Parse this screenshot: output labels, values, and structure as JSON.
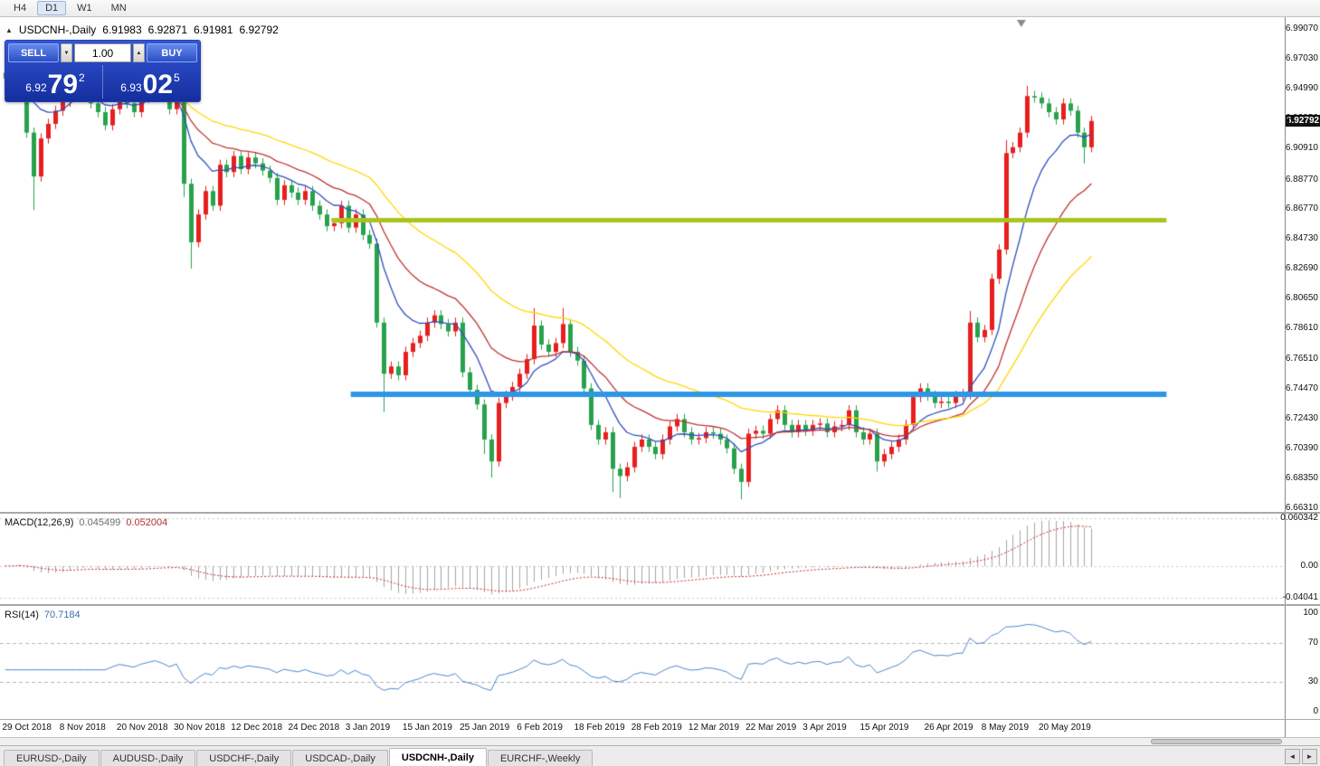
{
  "toolbar": {
    "items": [
      {
        "label": "H4"
      },
      {
        "label": "D1"
      },
      {
        "label": "W1"
      },
      {
        "label": "MN"
      }
    ],
    "active_index": 1
  },
  "chart": {
    "symbol_period": "USDCNH-,Daily",
    "open": "6.91983",
    "high": "6.92871",
    "low": "6.91981",
    "close": "6.92792"
  },
  "icons": {
    "collapse": "▲",
    "spin_down": "▼",
    "spin_up": "▲",
    "tab_left": "◄",
    "tab_right": "►"
  },
  "trade_panel": {
    "sell_label": "SELL",
    "buy_label": "BUY",
    "volume": "1.00",
    "sell_price": {
      "prefix": "6.92",
      "big": "79",
      "sup": "2"
    },
    "buy_price": {
      "prefix": "6.93",
      "big": "02",
      "sup": "5"
    },
    "panel_color": "#2245c4"
  },
  "price_axis": {
    "labels": [
      "6.99070",
      "6.97030",
      "6.94990",
      "6.92950",
      "6.90910",
      "6.88770",
      "6.86770",
      "6.84730",
      "6.82690",
      "6.80650",
      "6.78610",
      "6.76510",
      "6.74470",
      "6.72430",
      "6.70390",
      "6.68350",
      "6.66310"
    ],
    "current": "6.92792"
  },
  "macd_panel": {
    "label": "MACD(12,26,9)",
    "value1": "0.045499",
    "value2": "0.052004",
    "axis": [
      "0.060342",
      "0.00",
      "-0.04041"
    ]
  },
  "rsi_panel": {
    "label": "RSI(14)",
    "value": "70.7184",
    "axis": [
      "100",
      "70",
      "30",
      "0"
    ]
  },
  "tabbar": {
    "tabs": [
      {
        "label": "EURUSD-,Daily"
      },
      {
        "label": "AUDUSD-,Daily"
      },
      {
        "label": "USDCHF-,Daily"
      },
      {
        "label": "USDCAD-,Daily"
      },
      {
        "label": "USDCNH-,Daily"
      },
      {
        "label": "EURCHF-,Weekly"
      }
    ],
    "active_index": 4
  },
  "chart_data": {
    "type": "candlestick",
    "symbol": "USDCNH",
    "timeframe": "Daily",
    "price_min": 6.6605,
    "price_max": 6.999,
    "candle_spacing": 7.9,
    "left_pad": 3,
    "candle_width": 5,
    "bull_color": "#e81e1e",
    "bear_color": "#28a24c",
    "closes": [
      6.957,
      6.966,
      6.975,
      6.92,
      6.89,
      6.916,
      6.926,
      6.935,
      6.941,
      6.955,
      6.963,
      6.952,
      6.94,
      6.934,
      6.925,
      6.936,
      6.945,
      6.94,
      6.934,
      6.944,
      6.95,
      6.956,
      6.948,
      6.936,
      6.944,
      6.885,
      6.845,
      6.864,
      6.88,
      6.87,
      6.898,
      6.893,
      6.904,
      6.895,
      6.903,
      6.899,
      6.894,
      6.889,
      6.874,
      6.884,
      6.879,
      6.874,
      6.88,
      6.87,
      6.864,
      6.856,
      6.858,
      6.87,
      6.855,
      6.864,
      6.85,
      6.844,
      6.79,
      6.755,
      6.76,
      6.754,
      6.77,
      6.776,
      6.781,
      6.79,
      6.795,
      6.789,
      6.784,
      6.79,
      6.756,
      6.744,
      6.734,
      6.71,
      6.695,
      6.735,
      6.74,
      6.746,
      6.755,
      6.765,
      6.788,
      6.775,
      6.77,
      6.776,
      6.789,
      6.77,
      6.764,
      6.745,
      6.72,
      6.71,
      6.715,
      6.69,
      6.685,
      6.691,
      6.705,
      6.71,
      6.705,
      6.7,
      6.71,
      6.719,
      6.724,
      6.715,
      6.71,
      6.711,
      6.715,
      6.714,
      6.71,
      6.704,
      6.69,
      6.681,
      6.714,
      6.716,
      6.714,
      6.724,
      6.73,
      6.72,
      6.715,
      6.72,
      6.716,
      6.72,
      6.721,
      6.715,
      6.719,
      6.72,
      6.73,
      6.715,
      6.71,
      6.714,
      6.695,
      6.7,
      6.705,
      6.71,
      6.72,
      6.739,
      6.745,
      6.74,
      6.735,
      6.736,
      6.735,
      6.74,
      6.741,
      6.79,
      6.78,
      6.785,
      6.82,
      6.84,
      6.906,
      6.91,
      6.92,
      6.945,
      6.944,
      6.94,
      6.934,
      6.929,
      6.94,
      6.935,
      6.92,
      6.91,
      6.928
    ],
    "default_wick": 0.0035,
    "wick_overrides": {
      "2": [
        6.983,
        null
      ],
      "4": [
        null,
        6.867
      ],
      "25": [
        null,
        6.876
      ],
      "26": [
        null,
        6.827
      ],
      "53": [
        null,
        6.729
      ],
      "67": [
        null,
        6.7
      ],
      "68": [
        null,
        6.684
      ],
      "74": [
        6.8,
        null
      ],
      "78": [
        6.8,
        null
      ],
      "85": [
        null,
        6.674
      ],
      "86": [
        null,
        6.67
      ],
      "103": [
        null,
        6.669
      ],
      "122": [
        null,
        6.688
      ],
      "135": [
        6.798,
        null
      ],
      "140": [
        6.915,
        null
      ],
      "143": [
        6.952,
        null
      ],
      "151": [
        null,
        6.899
      ]
    },
    "ma_lines": [
      {
        "period": 9,
        "color": "#2f4fbe"
      },
      {
        "period": 19,
        "color": "#c03232"
      },
      {
        "period": 38,
        "color": "#ffd700"
      }
    ],
    "hlines": [
      {
        "price": 6.86,
        "color": "#a9c41e",
        "width": 5,
        "x1_frac": 0.258,
        "x2_frac": 0.908
      },
      {
        "price": 6.741,
        "color": "#2d97e5",
        "width": 6,
        "x1_frac": 0.273,
        "x2_frac": 0.908
      }
    ],
    "macd": {
      "fast": 12,
      "slow": 26,
      "signal": 9,
      "hist_color": "#a4a4a4",
      "signal_color": "#cc2a2a",
      "range": [
        -0.048,
        0.066
      ]
    },
    "rsi": {
      "period": 14,
      "color": "#4a87c8",
      "levels": [
        70,
        30
      ],
      "pad": 8
    },
    "date_labels": [
      [
        "29 Oct 2018",
        0
      ],
      [
        "8 Nov 2018",
        8
      ],
      [
        "20 Nov 2018",
        16
      ],
      [
        "30 Nov 2018",
        24
      ],
      [
        "12 Dec 2018",
        32
      ],
      [
        "24 Dec 2018",
        40
      ],
      [
        "3 Jan 2019",
        48
      ],
      [
        "15 Jan 2019",
        56
      ],
      [
        "25 Jan 2019",
        64
      ],
      [
        "6 Feb 2019",
        72
      ],
      [
        "18 Feb 2019",
        80
      ],
      [
        "28 Feb 2019",
        88
      ],
      [
        "12 Mar 2019",
        96
      ],
      [
        "22 Mar 2019",
        104
      ],
      [
        "3 Apr 2019",
        112
      ],
      [
        "15 Apr 2019",
        120
      ],
      [
        "26 Apr 2019",
        129
      ],
      [
        "8 May 2019",
        137
      ],
      [
        "20 May 2019",
        145
      ]
    ],
    "shift_marker_frac": 0.795
  }
}
